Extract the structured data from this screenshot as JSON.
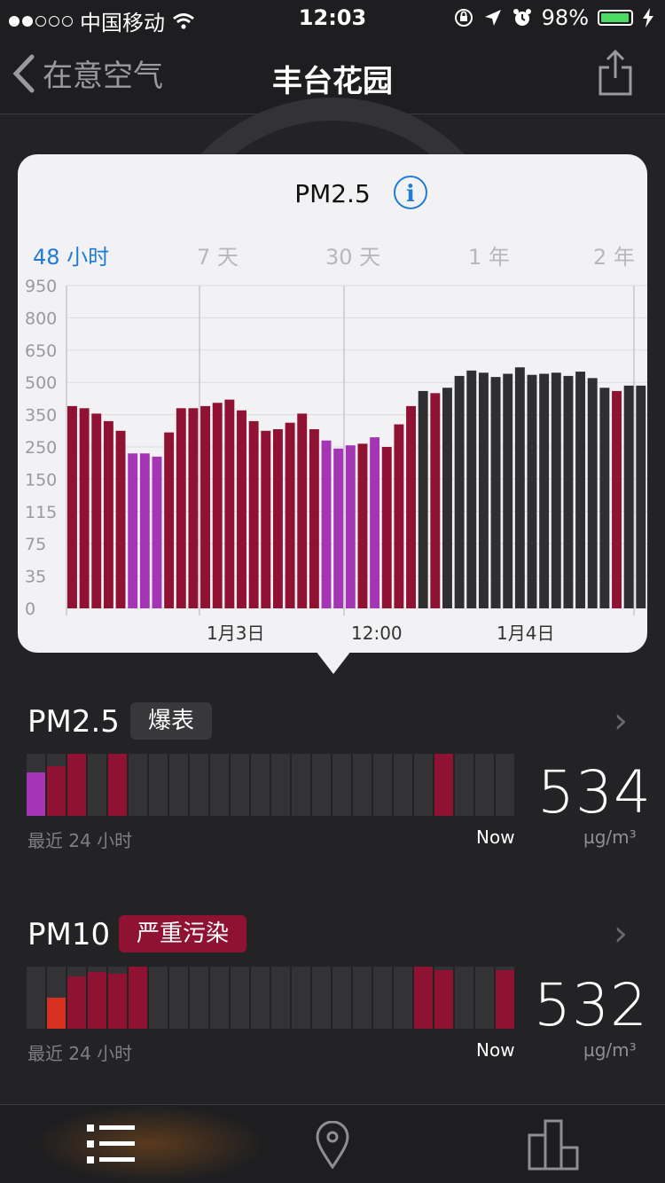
{
  "status_bar": {
    "carrier": "中国移动",
    "time": "12:03",
    "battery": "98%",
    "signal_bars_filled": 2,
    "signal_bars_total": 5
  },
  "nav": {
    "back_label": "在意空气",
    "title": "丰台花园"
  },
  "popup": {
    "title": "PM2.5",
    "info_icon": "i",
    "ranges": [
      "48 小时",
      "7 天",
      "30 天",
      "1 年",
      "2 年"
    ],
    "active_range": 0
  },
  "chart_data": {
    "type": "bar",
    "title": "PM2.5",
    "y_ticks": [
      "950",
      "800",
      "650",
      "500",
      "350",
      "250",
      "150",
      "115",
      "75",
      "35",
      "0"
    ],
    "x_ticks": [
      "1月3日",
      "12:00",
      "1月4日"
    ],
    "values": [
      390,
      380,
      355,
      330,
      300,
      230,
      230,
      220,
      295,
      380,
      380,
      390,
      405,
      420,
      370,
      330,
      300,
      305,
      325,
      355,
      305,
      270,
      245,
      255,
      260,
      280,
      250,
      320,
      390,
      460,
      450,
      475,
      530,
      555,
      545,
      525,
      540,
      570,
      535,
      540,
      545,
      530,
      550,
      520,
      475,
      460,
      485,
      485
    ],
    "colors": [
      "maroon",
      "maroon",
      "maroon",
      "maroon",
      "maroon",
      "purple",
      "purple",
      "purple",
      "maroon",
      "maroon",
      "maroon",
      "maroon",
      "maroon",
      "maroon",
      "maroon",
      "maroon",
      "maroon",
      "maroon",
      "maroon",
      "maroon",
      "maroon",
      "purple",
      "purple",
      "purple",
      "maroon",
      "purple",
      "maroon",
      "maroon",
      "maroon",
      "dark",
      "maroon",
      "dark",
      "dark",
      "dark",
      "dark",
      "dark",
      "dark",
      "dark",
      "dark",
      "dark",
      "dark",
      "dark",
      "dark",
      "dark",
      "dark",
      "maroon",
      "dark",
      "dark"
    ],
    "palette": {
      "maroon": "#8f1232",
      "purple": "#a435b5",
      "dark": "#2f2f32",
      "red": "#d8301f"
    }
  },
  "cards": [
    {
      "title": "PM2.5",
      "badge": "爆表",
      "badge_color": "#38383b",
      "caption": "最近 24 小时",
      "now": "Now",
      "value": "534",
      "unit": "µg/m³",
      "bars": [
        {
          "h": 0.7,
          "c": "purple"
        },
        {
          "h": 0.8,
          "c": "maroon"
        },
        {
          "h": 1,
          "c": "maroon"
        },
        {
          "h": 0,
          "c": "none"
        },
        {
          "h": 1,
          "c": "maroon"
        },
        {
          "h": 0,
          "c": "none"
        },
        {
          "h": 0,
          "c": "none"
        },
        {
          "h": 0,
          "c": "none"
        },
        {
          "h": 0,
          "c": "none"
        },
        {
          "h": 0,
          "c": "none"
        },
        {
          "h": 0,
          "c": "none"
        },
        {
          "h": 0,
          "c": "none"
        },
        {
          "h": 0,
          "c": "none"
        },
        {
          "h": 0,
          "c": "none"
        },
        {
          "h": 0,
          "c": "none"
        },
        {
          "h": 0,
          "c": "none"
        },
        {
          "h": 0,
          "c": "none"
        },
        {
          "h": 0,
          "c": "none"
        },
        {
          "h": 0,
          "c": "none"
        },
        {
          "h": 0,
          "c": "none"
        },
        {
          "h": 1,
          "c": "maroon"
        },
        {
          "h": 0,
          "c": "none"
        },
        {
          "h": 0,
          "c": "none"
        },
        {
          "h": 0,
          "c": "none"
        }
      ]
    },
    {
      "title": "PM10",
      "badge": "严重污染",
      "badge_color": "#8f1232",
      "caption": "最近 24 小时",
      "now": "Now",
      "value": "532",
      "unit": "µg/m³",
      "bars": [
        {
          "h": 0,
          "c": "none"
        },
        {
          "h": 0.5,
          "c": "red"
        },
        {
          "h": 0.85,
          "c": "maroon"
        },
        {
          "h": 0.92,
          "c": "maroon"
        },
        {
          "h": 0.88,
          "c": "maroon"
        },
        {
          "h": 1,
          "c": "maroon"
        },
        {
          "h": 0,
          "c": "none"
        },
        {
          "h": 0,
          "c": "none"
        },
        {
          "h": 0,
          "c": "none"
        },
        {
          "h": 0,
          "c": "none"
        },
        {
          "h": 0,
          "c": "none"
        },
        {
          "h": 0,
          "c": "none"
        },
        {
          "h": 0,
          "c": "none"
        },
        {
          "h": 0,
          "c": "none"
        },
        {
          "h": 0,
          "c": "none"
        },
        {
          "h": 0,
          "c": "none"
        },
        {
          "h": 0,
          "c": "none"
        },
        {
          "h": 0,
          "c": "none"
        },
        {
          "h": 0,
          "c": "none"
        },
        {
          "h": 1,
          "c": "maroon"
        },
        {
          "h": 0.95,
          "c": "maroon"
        },
        {
          "h": 0,
          "c": "none"
        },
        {
          "h": 0,
          "c": "none"
        },
        {
          "h": 0.95,
          "c": "maroon"
        }
      ]
    }
  ],
  "tab_bar": {
    "items": [
      "list-icon",
      "location-pin-icon",
      "bar-chart-icon"
    ],
    "active": 0
  }
}
